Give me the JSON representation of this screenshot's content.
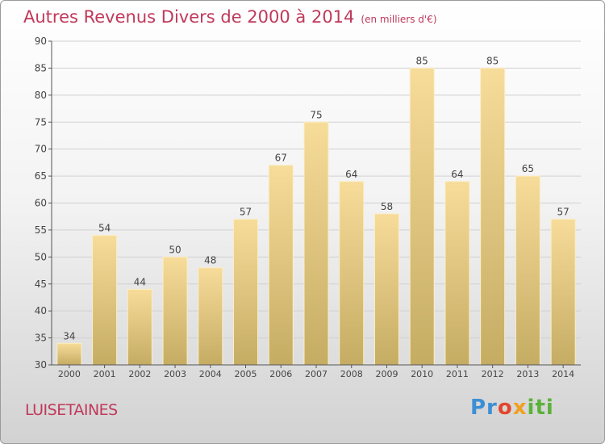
{
  "title": "Autres Revenus Divers de 2000 à 2014",
  "unit": "(en milliers d'€)",
  "commune": "LUISETAINES",
  "logo": {
    "p1": "Pr",
    "p2": "o",
    "p3": "x",
    "p4": "iti"
  },
  "colors": {
    "title": "#c0395a",
    "bar_top": "#f7dc9a",
    "bar_bottom": "#c5ac63",
    "grid": "#d0d0d0"
  },
  "chart_data": {
    "type": "bar",
    "categories": [
      "2000",
      "2001",
      "2002",
      "2003",
      "2004",
      "2005",
      "2006",
      "2007",
      "2008",
      "2009",
      "2010",
      "2011",
      "2012",
      "2013",
      "2014"
    ],
    "values": [
      34,
      54,
      44,
      50,
      48,
      57,
      67,
      75,
      64,
      58,
      85,
      64,
      85,
      65,
      57
    ],
    "ylim": [
      30,
      90
    ],
    "yticks": [
      30,
      35,
      40,
      45,
      50,
      55,
      60,
      65,
      70,
      75,
      80,
      85,
      90
    ],
    "grid": true
  }
}
